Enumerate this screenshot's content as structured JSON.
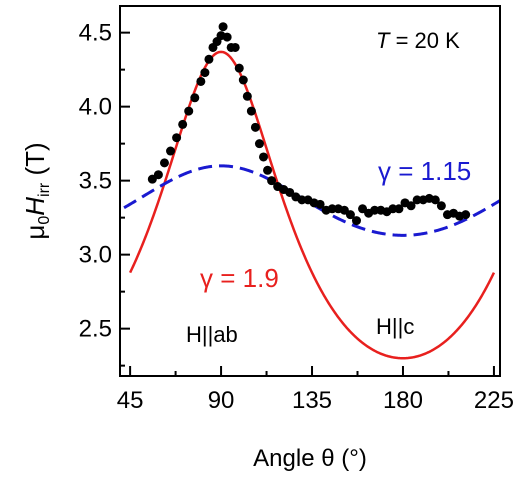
{
  "chart_data": {
    "type": "scatter",
    "x_axis": {
      "label": "Angle θ (°)",
      "range": [
        40,
        228
      ],
      "ticks": [
        45,
        90,
        135,
        180,
        225
      ],
      "minor_step": 22.5
    },
    "y_axis": {
      "label_prefix": "μ",
      "label_prefix_sub": "0",
      "label_main": "H",
      "label_main_sub": "irr",
      "label_unit": " (T)",
      "range": [
        2.18,
        4.68
      ],
      "ticks": [
        2.5,
        3.0,
        3.5,
        4.0,
        4.5
      ],
      "minor_step": 0.25
    },
    "grid": false,
    "annotations": {
      "temperature": "T = 20 K",
      "gamma_red": "γ = 1.9",
      "gamma_blue": "γ = 1.15",
      "label_ab": "H||ab",
      "label_c": "H||c"
    },
    "colors": {
      "data_points": "#000000",
      "red_curve": "#e8201e",
      "blue_curve": "#1a1ad0",
      "axes": "#000000"
    },
    "series": [
      {
        "kind": "scatter",
        "points": [
          [
            56,
            3.51
          ],
          [
            59,
            3.54
          ],
          [
            62,
            3.62
          ],
          [
            65,
            3.7
          ],
          [
            68,
            3.79
          ],
          [
            71,
            3.88
          ],
          [
            74,
            3.97
          ],
          [
            77,
            4.06
          ],
          [
            80,
            4.17
          ],
          [
            82,
            4.23
          ],
          [
            84,
            4.32
          ],
          [
            86,
            4.4
          ],
          [
            88,
            4.44
          ],
          [
            90,
            4.48
          ],
          [
            91,
            4.54
          ],
          [
            93,
            4.47
          ],
          [
            95,
            4.4
          ],
          [
            97,
            4.4
          ],
          [
            99,
            4.26
          ],
          [
            101,
            4.18
          ],
          [
            103,
            4.07
          ],
          [
            105,
            3.97
          ],
          [
            107,
            3.86
          ],
          [
            109,
            3.75
          ],
          [
            111,
            3.66
          ],
          [
            113,
            3.57
          ],
          [
            115,
            3.5
          ],
          [
            118,
            3.46
          ],
          [
            121,
            3.44
          ],
          [
            124,
            3.42
          ],
          [
            127,
            3.39
          ],
          [
            130,
            3.37
          ],
          [
            133,
            3.37
          ],
          [
            136,
            3.35
          ],
          [
            139,
            3.34
          ],
          [
            142,
            3.3
          ],
          [
            145,
            3.31
          ],
          [
            148,
            3.31
          ],
          [
            151,
            3.3
          ],
          [
            154,
            3.27
          ],
          [
            157,
            3.23
          ],
          [
            160,
            3.31
          ],
          [
            163,
            3.28
          ],
          [
            166,
            3.3
          ],
          [
            169,
            3.3
          ],
          [
            172,
            3.29
          ],
          [
            175,
            3.31
          ],
          [
            178,
            3.31
          ],
          [
            181,
            3.35
          ],
          [
            184,
            3.33
          ],
          [
            187,
            3.37
          ],
          [
            190,
            3.37
          ],
          [
            193,
            3.38
          ],
          [
            196,
            3.37
          ],
          [
            199,
            3.33
          ],
          [
            202,
            3.27
          ],
          [
            205,
            3.28
          ],
          [
            208,
            3.26
          ],
          [
            211,
            3.27
          ]
        ]
      },
      {
        "kind": "curve",
        "gamma": 1.9,
        "amplitude_max": 4.37,
        "x_start": 45,
        "x_end": 225
      },
      {
        "kind": "curve",
        "gamma": 1.15,
        "amplitude_max": 3.6,
        "x_start": 42,
        "x_end": 228
      }
    ]
  }
}
